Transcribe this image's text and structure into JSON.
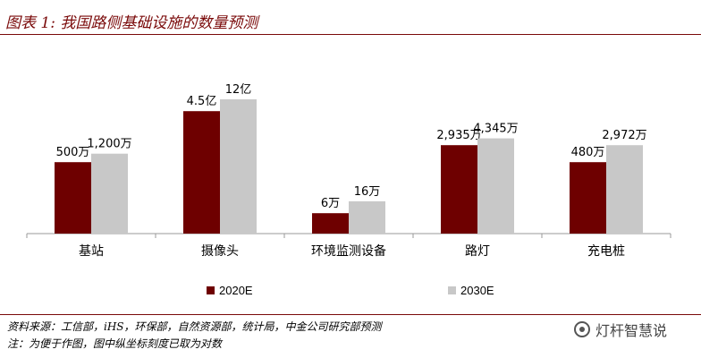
{
  "title": "图表 1:  我国路侧基础设施的数量预测",
  "chart_data": {
    "type": "bar",
    "categories": [
      "基站",
      "摄像头",
      "环境监测设备",
      "路灯",
      "充电桩"
    ],
    "series": [
      {
        "name": "2020E",
        "color": "#6e0000",
        "labels": [
          "500万",
          "4.5亿",
          "6万",
          "2,935万",
          "480万"
        ],
        "rel": [
          0.42,
          0.72,
          0.12,
          0.52,
          0.42
        ]
      },
      {
        "name": "2030E",
        "color": "#c8c8c8",
        "labels": [
          "1,200万",
          "12亿",
          "16万",
          "4,345万",
          "2,972万"
        ],
        "rel": [
          0.47,
          0.79,
          0.19,
          0.56,
          0.52
        ]
      }
    ],
    "yaxis_scale": "non-linear (adjusted for display)",
    "grid": false,
    "legend_position": "bottom"
  },
  "footer": {
    "source": "资料来源：工信部，iHS，环保部，自然资源部，统计局，中金公司研究部预测",
    "note": "注：为便于作图，图中纵坐标刻度已取为对数"
  },
  "brand": "灯杆智慧说",
  "icons": {
    "brand": "wechat-icon"
  }
}
